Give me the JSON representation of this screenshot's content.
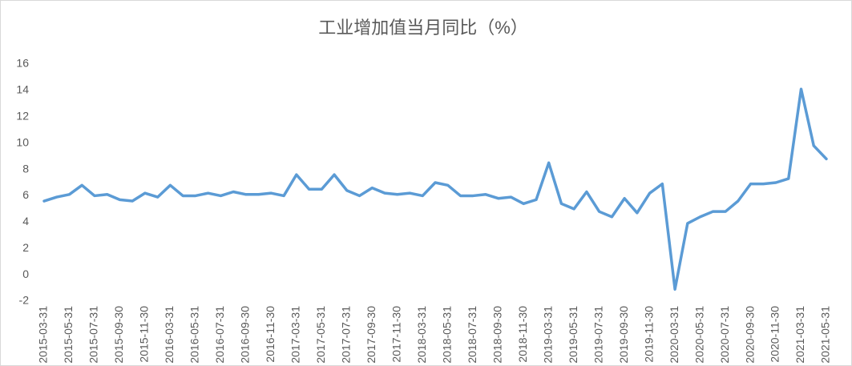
{
  "chart_data": {
    "type": "line",
    "title": "工业增加值当月同比（%）",
    "categories": [
      "2015-03-31",
      null,
      "2015-05-31",
      null,
      "2015-07-31",
      null,
      "2015-09-30",
      null,
      "2015-11-30",
      null,
      "2016-03-31",
      null,
      "2016-05-31",
      null,
      "2016-07-31",
      null,
      "2016-09-30",
      null,
      "2016-11-30",
      null,
      "2017-03-31",
      null,
      "2017-05-31",
      null,
      "2017-07-31",
      null,
      "2017-09-30",
      null,
      "2017-11-30",
      null,
      "2018-03-31",
      null,
      "2018-05-31",
      null,
      "2018-07-31",
      null,
      "2018-09-30",
      null,
      "2018-11-30",
      null,
      "2019-03-31",
      null,
      "2019-05-31",
      null,
      "2019-07-31",
      null,
      "2019-09-30",
      null,
      "2019-11-30",
      null,
      "2020-03-31",
      null,
      "2020-05-31",
      null,
      "2020-07-31",
      null,
      "2020-09-30",
      null,
      "2020-11-30",
      null,
      "2021-03-31",
      null,
      "2021-05-31"
    ],
    "values": [
      5.6,
      5.9,
      6.1,
      6.8,
      6.0,
      6.1,
      5.7,
      5.6,
      6.2,
      5.9,
      6.8,
      6.0,
      6.0,
      6.2,
      6.0,
      6.3,
      6.1,
      6.1,
      6.2,
      6.0,
      7.6,
      6.5,
      6.5,
      7.6,
      6.4,
      6.0,
      6.6,
      6.2,
      6.1,
      6.2,
      6.0,
      7.0,
      6.8,
      6.0,
      6.0,
      6.1,
      5.8,
      5.9,
      5.4,
      5.7,
      8.5,
      5.4,
      5.0,
      6.3,
      4.8,
      4.4,
      5.8,
      4.7,
      6.2,
      6.9,
      -1.1,
      3.9,
      4.4,
      4.8,
      4.8,
      5.6,
      6.9,
      6.9,
      7.0,
      7.3,
      14.1,
      9.8,
      8.8
    ],
    "color": "#5b9bd5",
    "ylim": [
      -2,
      16
    ],
    "yticks": [
      -2,
      0,
      2,
      4,
      6,
      8,
      10,
      12,
      14,
      16
    ],
    "grid": false
  }
}
